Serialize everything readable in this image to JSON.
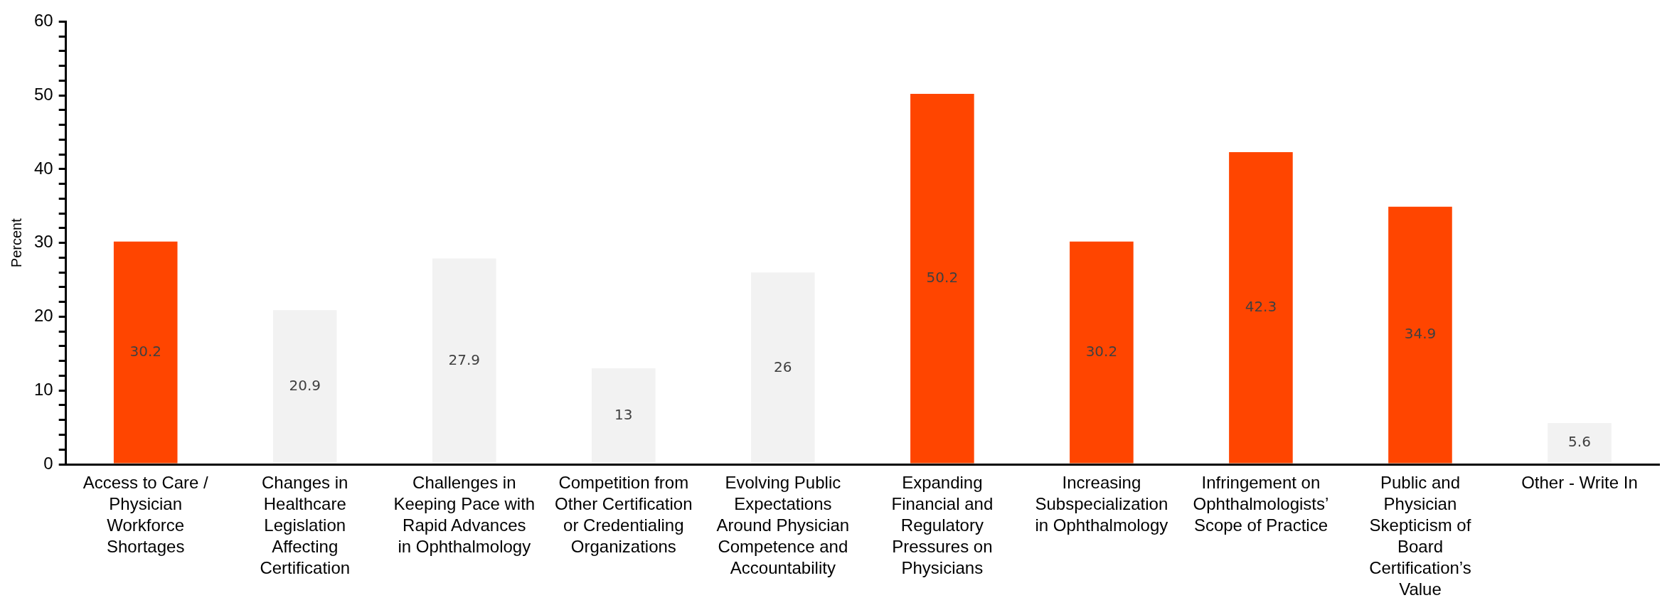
{
  "chart_data": {
    "type": "bar",
    "ylabel": "Percent",
    "categories": [
      "Access to Care / Physician Workforce Shortages",
      "Changes in Healthcare Legislation Affecting Certification",
      "Challenges in Keeping Pace with Rapid Advances in Ophthalmology",
      "Competition from Other Certification or Credentialing Organizations",
      "Evolving Public Expectations Around Physician Competence and Accountability",
      "Expanding Financial and Regulatory Pressures on Physicians",
      "Increasing Subspecialization in Ophthalmology",
      "Infringement on Ophthalmologists’ Scope of Practice",
      "Public and Physician Skepticism of Board Certification’s Value",
      "Other - Write In"
    ],
    "values": [
      30.2,
      20.9,
      27.9,
      13,
      26,
      50.2,
      30.2,
      42.3,
      34.9,
      5.6
    ],
    "colors": [
      "#ff4500",
      "#f2f2f2",
      "#f2f2f2",
      "#f2f2f2",
      "#f2f2f2",
      "#ff4500",
      "#ff4500",
      "#ff4500",
      "#ff4500",
      "#f2f2f2"
    ],
    "ylim": [
      0,
      60
    ],
    "yticks": [
      0,
      {
        "value": 2,
        "label": null
      },
      {
        "value": 4,
        "label": null
      },
      {
        "value": 6,
        "label": null
      },
      {
        "value": 8,
        "label": null
      },
      10,
      {
        "value": 12,
        "label": null
      },
      {
        "value": 14,
        "label": null
      },
      {
        "value": 16,
        "label": null
      },
      {
        "value": 18,
        "label": null
      },
      20,
      {
        "value": 22,
        "label": null
      },
      {
        "value": 24,
        "label": null
      },
      {
        "value": 26,
        "label": null
      },
      {
        "value": 28,
        "label": null
      },
      30,
      {
        "value": 32,
        "label": null
      },
      {
        "value": 34,
        "label": null
      },
      {
        "value": 36,
        "label": null
      },
      {
        "value": 38,
        "label": null
      },
      40,
      {
        "value": 42,
        "label": null
      },
      {
        "value": 44,
        "label": null
      },
      {
        "value": 46,
        "label": null
      },
      {
        "value": 48,
        "label": null
      },
      50,
      {
        "value": 52,
        "label": null
      },
      {
        "value": 54,
        "label": null
      },
      {
        "value": 56,
        "label": null
      },
      {
        "value": 58,
        "label": null
      },
      60
    ],
    "grid": false,
    "legend": false,
    "data_labels": true
  }
}
